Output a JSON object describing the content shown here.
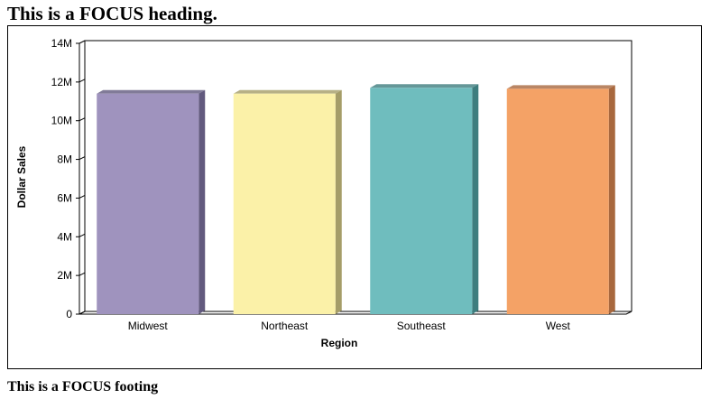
{
  "page": {
    "heading": "This is a FOCUS heading.",
    "footing": "This is a FOCUS footing"
  },
  "chart_data": {
    "type": "bar",
    "title": "",
    "xlabel": "Region",
    "ylabel": "Dollar Sales",
    "categories": [
      "Midwest",
      "Northeast",
      "Southeast",
      "West"
    ],
    "values": [
      11400000,
      11400000,
      11700000,
      11650000
    ],
    "colors": [
      "#9f93be",
      "#fbf1a8",
      "#6fbdbe",
      "#f4a266"
    ],
    "side_colors": [
      "#625a7e",
      "#a59d68",
      "#3e7d7e",
      "#a8683e"
    ],
    "ylim": [
      0,
      14000000
    ],
    "y_ticks": [
      0,
      2000000,
      4000000,
      6000000,
      8000000,
      10000000,
      12000000,
      14000000
    ],
    "y_tick_labels": [
      "0",
      "2M",
      "4M",
      "6M",
      "8M",
      "10M",
      "12M",
      "14M"
    ],
    "grid": false,
    "legend": "none"
  }
}
